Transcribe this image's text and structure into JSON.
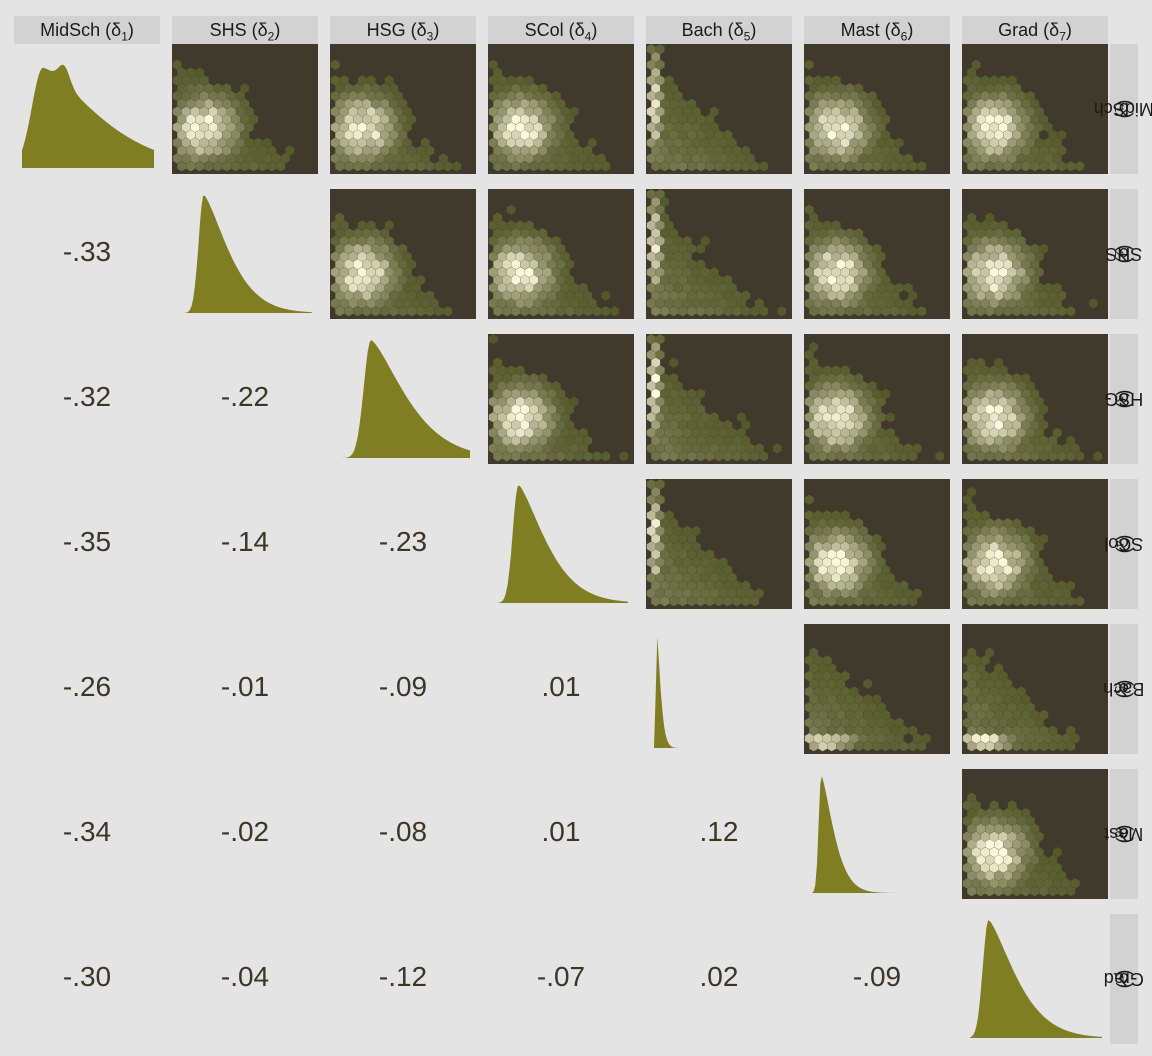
{
  "chart_data": {
    "type": "scatterplot-matrix",
    "description_of_panels": {
      "upper": "hexbin density",
      "diagonal": "density",
      "lower": "correlation"
    },
    "variables": [
      {
        "short": "MidSch",
        "sym": "δ",
        "sub": "1"
      },
      {
        "short": "SHS",
        "sym": "δ",
        "sub": "2"
      },
      {
        "short": "HSG",
        "sym": "δ",
        "sub": "3"
      },
      {
        "short": "SCol",
        "sym": "δ",
        "sub": "4"
      },
      {
        "short": "Bach",
        "sym": "δ",
        "sub": "5"
      },
      {
        "short": "Mast",
        "sym": "δ",
        "sub": "6"
      },
      {
        "short": "Grad",
        "sym": "δ",
        "sub": "7"
      }
    ],
    "correlations": [
      {
        "row": 2,
        "col": 1,
        "label": "-.33"
      },
      {
        "row": 3,
        "col": 1,
        "label": "-.32"
      },
      {
        "row": 3,
        "col": 2,
        "label": "-.22"
      },
      {
        "row": 4,
        "col": 1,
        "label": "-.35"
      },
      {
        "row": 4,
        "col": 2,
        "label": "-.14"
      },
      {
        "row": 4,
        "col": 3,
        "label": "-.23"
      },
      {
        "row": 5,
        "col": 1,
        "label": "-.26"
      },
      {
        "row": 5,
        "col": 2,
        "label": "-.01"
      },
      {
        "row": 5,
        "col": 3,
        "label": "-.09"
      },
      {
        "row": 5,
        "col": 4,
        "label": ".01"
      },
      {
        "row": 6,
        "col": 1,
        "label": "-.34"
      },
      {
        "row": 6,
        "col": 2,
        "label": "-.02"
      },
      {
        "row": 6,
        "col": 3,
        "label": "-.08"
      },
      {
        "row": 6,
        "col": 4,
        "label": ".01"
      },
      {
        "row": 6,
        "col": 5,
        "label": ".12"
      },
      {
        "row": 7,
        "col": 1,
        "label": "-.30"
      },
      {
        "row": 7,
        "col": 2,
        "label": "-.04"
      },
      {
        "row": 7,
        "col": 3,
        "label": "-.12"
      },
      {
        "row": 7,
        "col": 4,
        "label": "-.07"
      },
      {
        "row": 7,
        "col": 5,
        "label": ".02"
      },
      {
        "row": 7,
        "col": 6,
        "label": "-.09"
      }
    ],
    "colors": {
      "background": "#e4e4e4",
      "strip": "#d2d2d2",
      "hex_panel": "#3f3a2b",
      "density_fill": "#7f7e22",
      "correlation_text": "#3b3626",
      "hex_low": "#4f5526",
      "hex_high": "#fcf8dc"
    }
  }
}
